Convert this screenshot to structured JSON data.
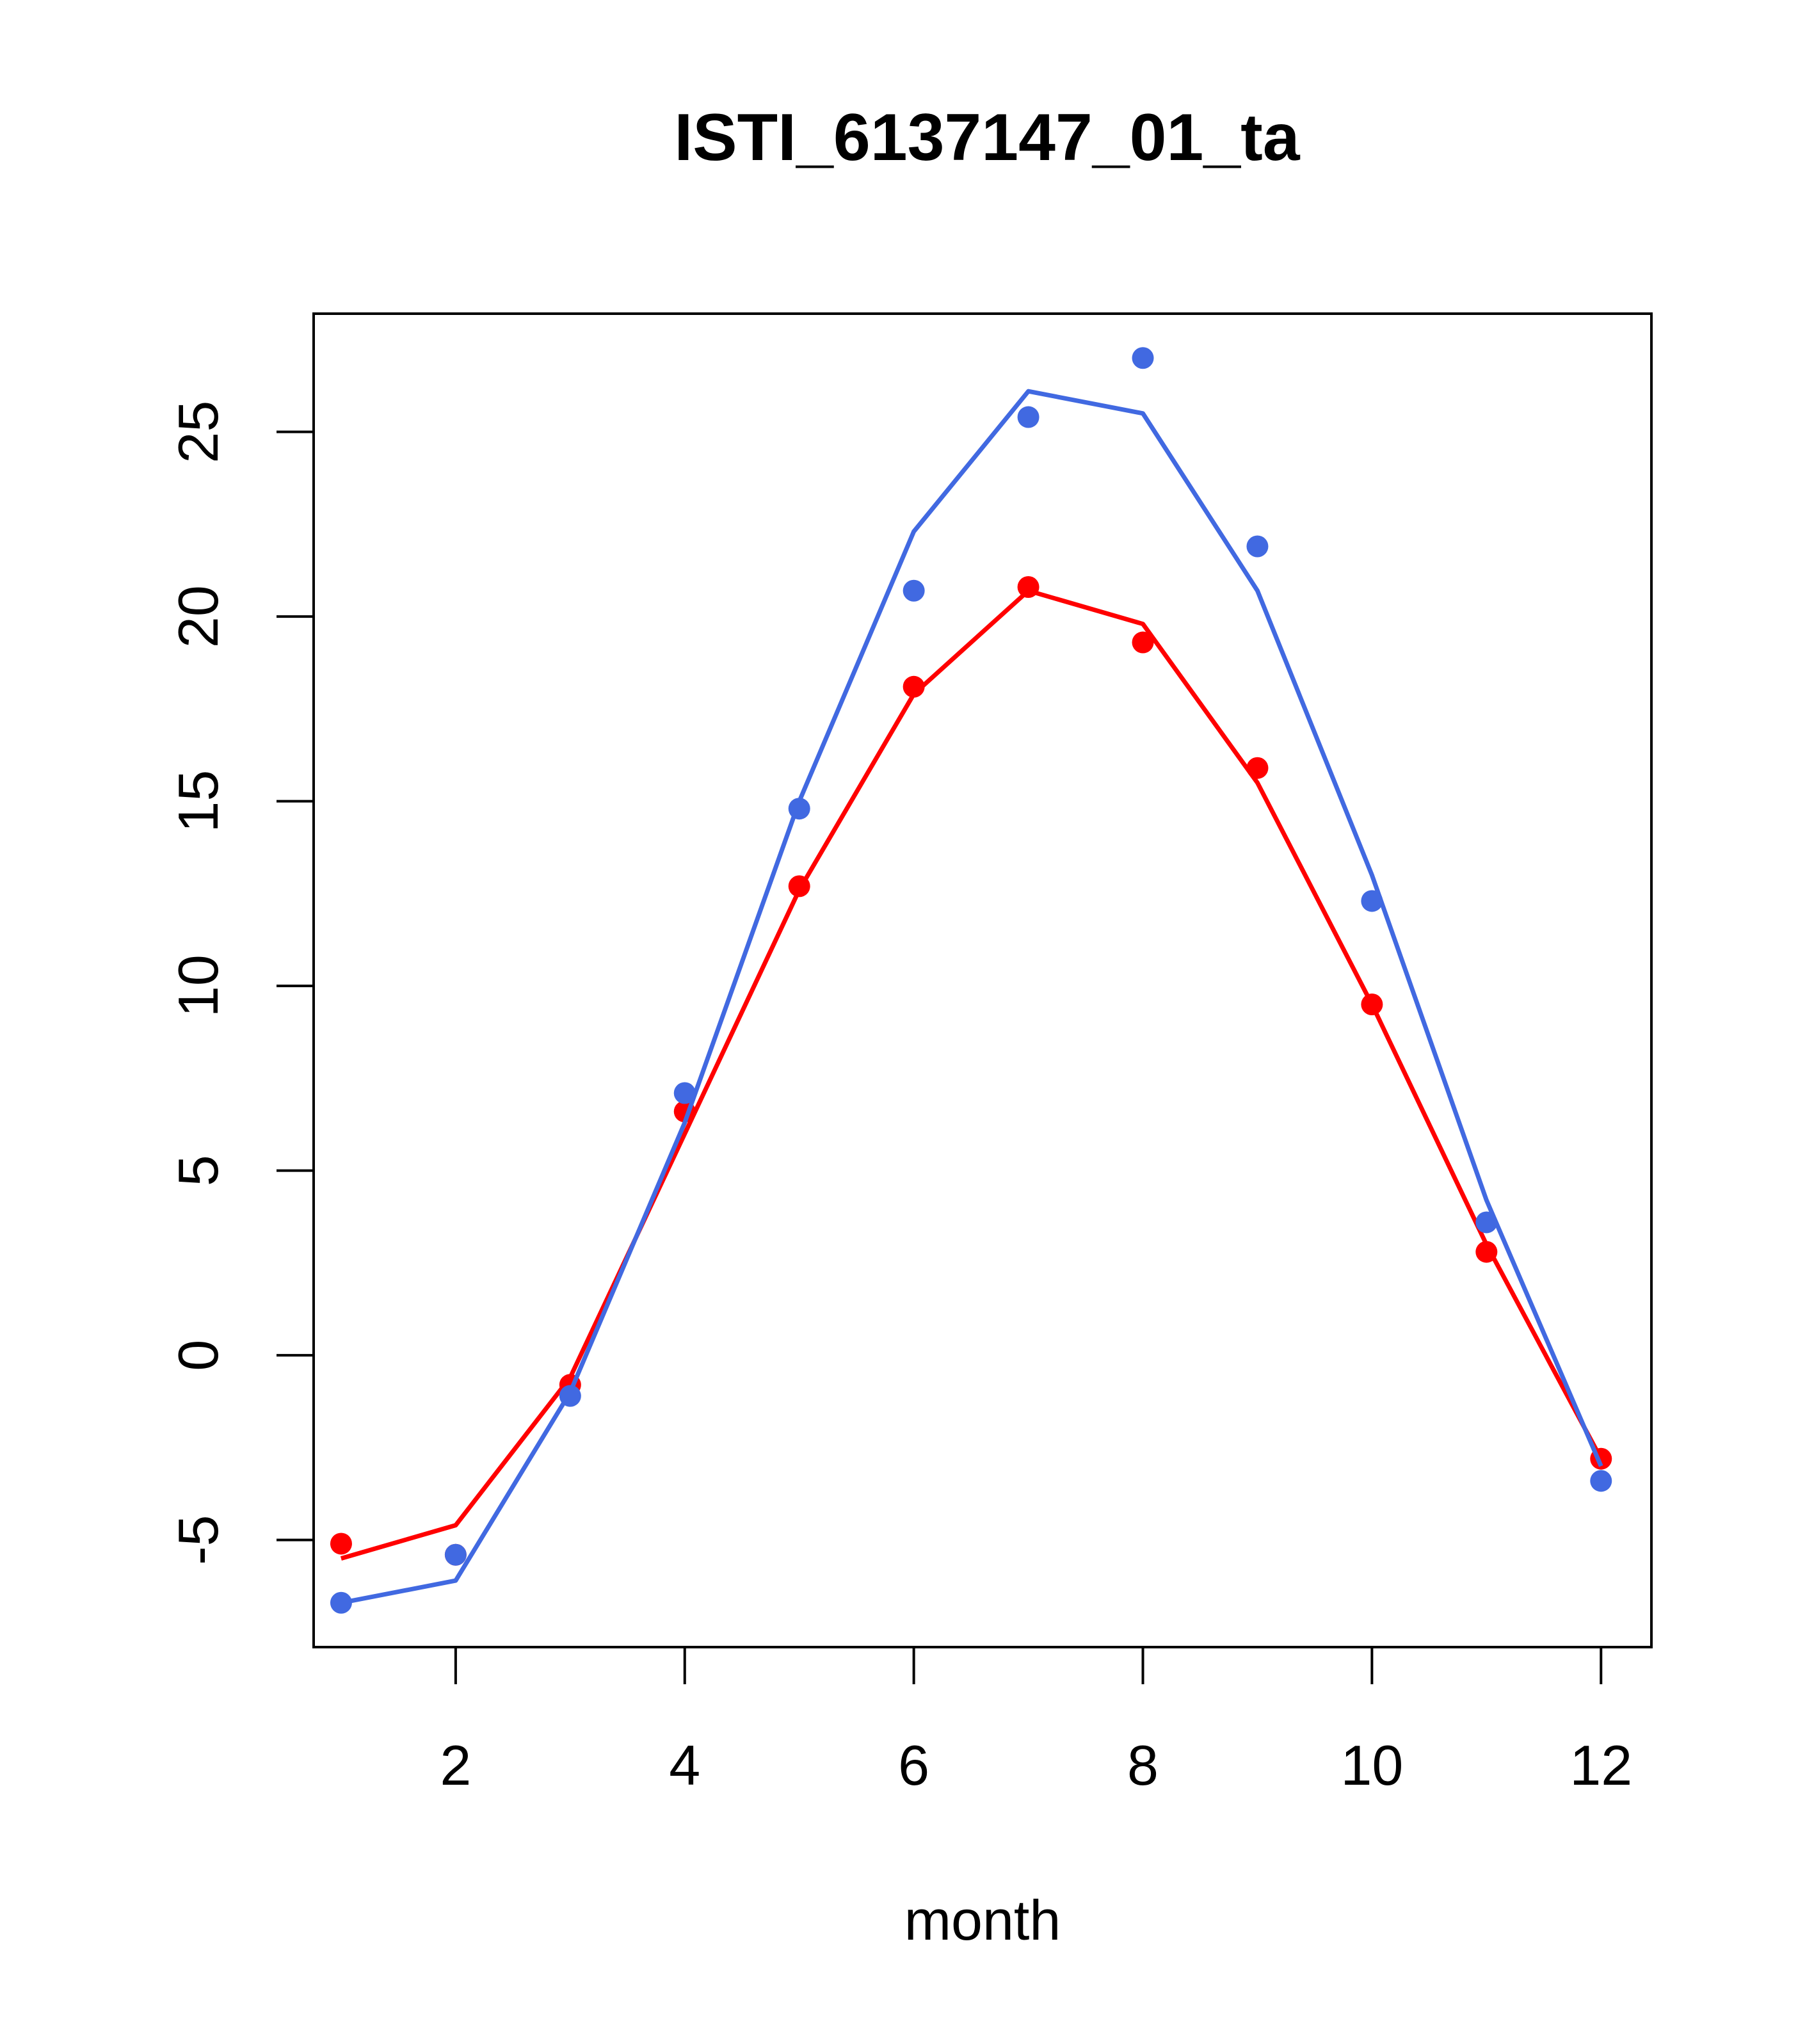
{
  "chart_data": {
    "type": "line",
    "title": "ISTI_6137147_01_ta",
    "xlabel": "month",
    "ylabel": "",
    "xlim": [
      0.76,
      12.44
    ],
    "ylim": [
      -7.9,
      28.2
    ],
    "x_ticks": [
      2,
      4,
      6,
      8,
      10,
      12
    ],
    "y_ticks": [
      -5,
      0,
      5,
      10,
      15,
      20,
      25
    ],
    "x": [
      1,
      2,
      3,
      4,
      5,
      6,
      7,
      8,
      9,
      10,
      11,
      12
    ],
    "grid": false,
    "series": [
      {
        "color": "#ff0000",
        "points": [
          -5.1,
          -5.4,
          -0.8,
          6.6,
          12.7,
          18.1,
          20.8,
          19.3,
          15.9,
          9.5,
          2.8,
          -2.8
        ],
        "line": [
          -5.5,
          -4.6,
          -0.6,
          6.0,
          12.6,
          17.9,
          20.7,
          19.8,
          15.5,
          9.5,
          3.0,
          -2.8
        ]
      },
      {
        "color": "#4169e1",
        "points": [
          -6.7,
          -5.4,
          -1.1,
          7.1,
          14.8,
          20.7,
          25.4,
          27.0,
          21.9,
          12.3,
          3.6,
          -3.4
        ],
        "line": [
          -6.7,
          -6.1,
          -1.0,
          6.3,
          15.0,
          22.3,
          26.1,
          25.5,
          20.7,
          13.0,
          4.2,
          -3.0
        ]
      }
    ]
  }
}
